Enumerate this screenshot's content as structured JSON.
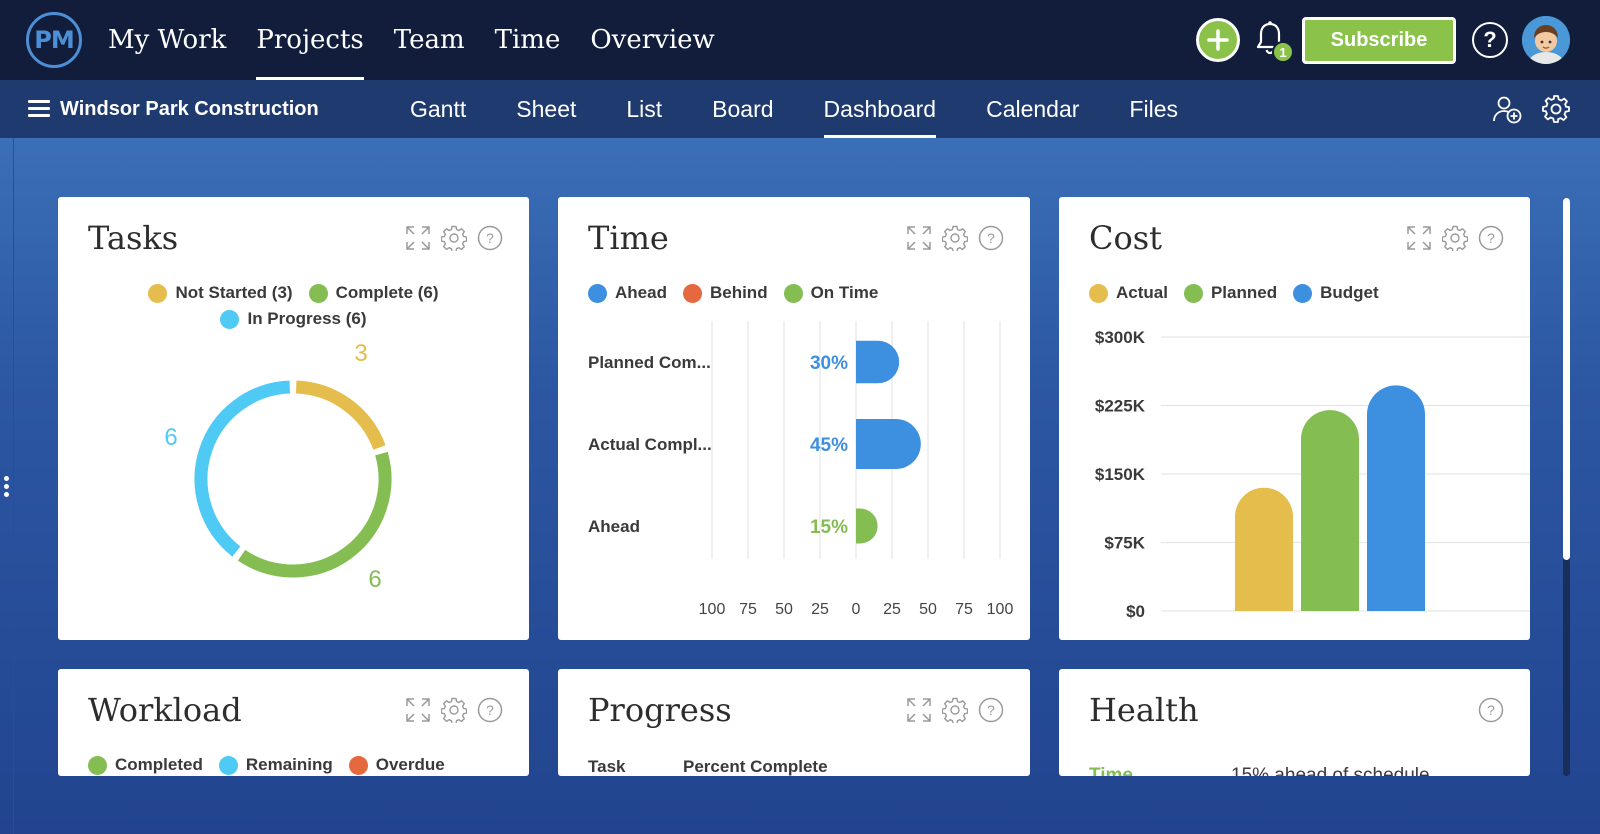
{
  "logo": "PM",
  "topnav": {
    "items": [
      "My Work",
      "Projects",
      "Team",
      "Time",
      "Overview"
    ],
    "active": 1,
    "notification_count": "1",
    "subscribe_label": "Subscribe",
    "help_label": "?"
  },
  "project": {
    "name": "Windsor Park Construction",
    "tabs": [
      "Gantt",
      "Sheet",
      "List",
      "Board",
      "Dashboard",
      "Calendar",
      "Files"
    ],
    "active_tab": 4
  },
  "colors": {
    "yellow": "#e5bd4c",
    "green": "#84bd52",
    "cyan": "#4fcaf4",
    "blue": "#3d8fe0",
    "orange": "#e6683e"
  },
  "tasks_card": {
    "title": "Tasks",
    "legend": [
      {
        "label": "Not Started (3)",
        "color": "#e5bd4c"
      },
      {
        "label": "Complete (6)",
        "color": "#84bd52"
      },
      {
        "label": "In Progress (6)",
        "color": "#4fcaf4"
      }
    ],
    "chart_data": {
      "type": "pie",
      "donut": true,
      "slices": [
        {
          "label": "Not Started",
          "value": 3,
          "color": "#e5bd4c"
        },
        {
          "label": "Complete",
          "value": 6,
          "color": "#84bd52"
        },
        {
          "label": "In Progress",
          "value": 6,
          "color": "#4fcaf4"
        }
      ]
    }
  },
  "time_card": {
    "title": "Time",
    "legend": [
      {
        "label": "Ahead",
        "color": "#3d8fe0"
      },
      {
        "label": "Behind",
        "color": "#e6683e"
      },
      {
        "label": "On Time",
        "color": "#84bd52"
      }
    ],
    "chart_data": {
      "type": "bar",
      "orientation": "horizontal",
      "categories": [
        "Planned Com...",
        "Actual Compl...",
        "Ahead"
      ],
      "values": [
        30,
        45,
        15
      ],
      "value_labels": [
        "30%",
        "45%",
        "15%"
      ],
      "colors": [
        "#3d8fe0",
        "#3d8fe0",
        "#84bd52"
      ],
      "xlim": [
        -100,
        100
      ],
      "xticks": [
        "100",
        "75",
        "50",
        "25",
        "0",
        "25",
        "50",
        "75",
        "100"
      ],
      "grid": true
    }
  },
  "cost_card": {
    "title": "Cost",
    "legend": [
      {
        "label": "Actual",
        "color": "#e5bd4c"
      },
      {
        "label": "Planned",
        "color": "#84bd52"
      },
      {
        "label": "Budget",
        "color": "#3d8fe0"
      }
    ],
    "chart_data": {
      "type": "bar",
      "series": [
        {
          "name": "Actual",
          "values": [
            135000
          ],
          "color": "#e5bd4c"
        },
        {
          "name": "Planned",
          "values": [
            220000
          ],
          "color": "#84bd52"
        },
        {
          "name": "Budget",
          "values": [
            247000
          ],
          "color": "#3d8fe0"
        }
      ],
      "ylim": [
        0,
        300000
      ],
      "yticks": [
        "$0",
        "$75K",
        "$150K",
        "$225K",
        "$300K"
      ],
      "grid": true
    }
  },
  "workload_card": {
    "title": "Workload",
    "legend": [
      {
        "label": "Completed",
        "color": "#84bd52"
      },
      {
        "label": "Remaining",
        "color": "#4fcaf4"
      },
      {
        "label": "Overdue",
        "color": "#e6683e"
      }
    ]
  },
  "progress_card": {
    "title": "Progress",
    "col_task": "Task",
    "col_percent": "Percent Complete"
  },
  "health_card": {
    "title": "Health",
    "row_label": "Time",
    "row_value": "15% ahead of schedule"
  }
}
